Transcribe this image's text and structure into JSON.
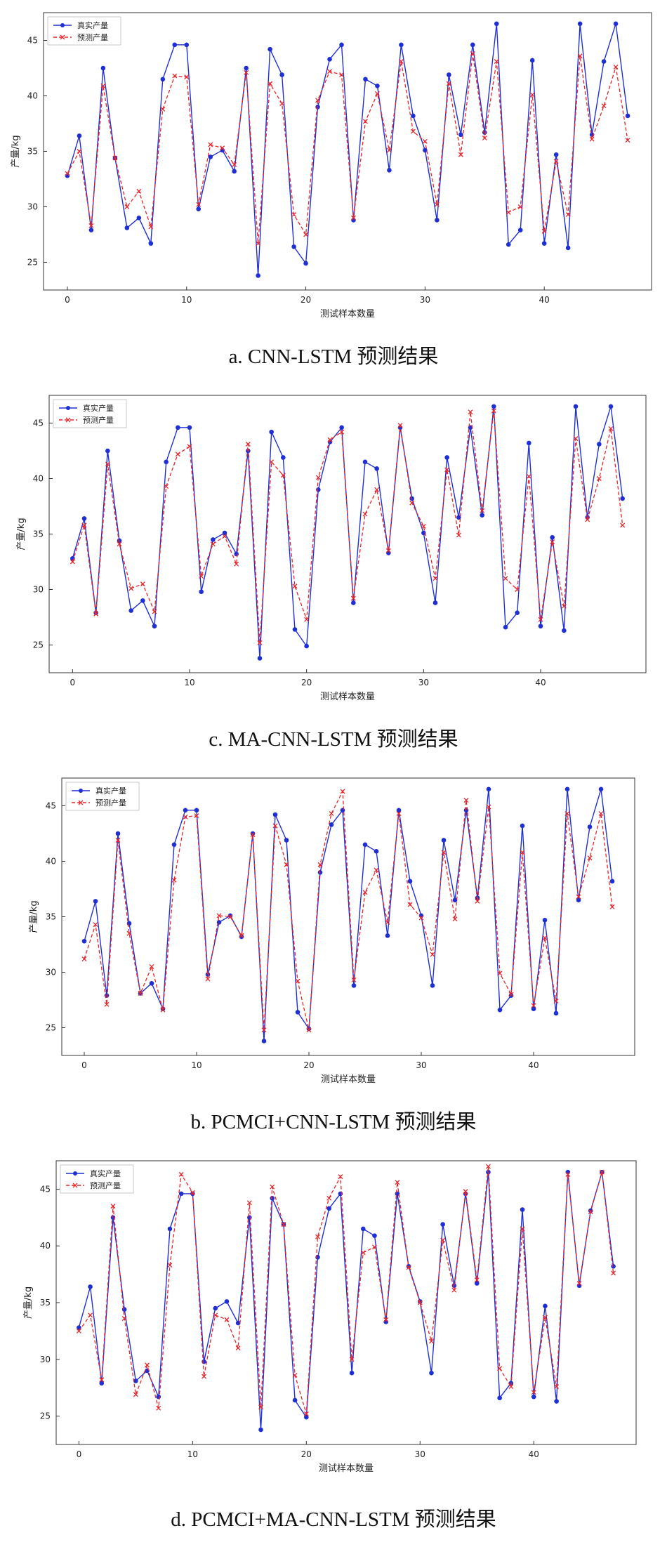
{
  "colors": {
    "true_series": "#1f2fd6",
    "pred_series": "#e8262a",
    "axes": "#333333"
  },
  "chart_data": [
    {
      "type": "line",
      "caption": "a. CNN-LSTM 预测结果",
      "xlabel": "测试样本数量",
      "ylabel": "产量/kg",
      "xlim": [
        -2,
        49
      ],
      "ylim": [
        22.5,
        47.5
      ],
      "xticks": [
        0,
        10,
        20,
        30,
        40
      ],
      "yticks": [
        25,
        30,
        35,
        40,
        45
      ],
      "grid": false,
      "legend_position": "top-left",
      "series": [
        {
          "name": "真实产量",
          "marker": "dot",
          "line": "solid",
          "values": [
            32.8,
            36.4,
            27.9,
            42.5,
            34.4,
            28.1,
            29.0,
            26.7,
            41.5,
            44.6,
            44.6,
            29.8,
            34.5,
            35.1,
            33.2,
            42.5,
            23.8,
            44.2,
            41.9,
            26.4,
            24.9,
            39.0,
            43.3,
            44.6,
            28.8,
            41.5,
            40.9,
            33.3,
            44.6,
            38.2,
            35.1,
            28.8,
            41.9,
            36.5,
            44.6,
            36.7,
            46.5,
            26.6,
            27.9,
            43.2,
            26.7,
            34.7,
            26.3,
            46.5,
            36.5,
            43.1,
            46.5,
            38.2
          ]
        },
        {
          "name": "预测产量",
          "marker": "x",
          "line": "dashed",
          "values": [
            33.0,
            35.0,
            28.3,
            40.9,
            34.4,
            30.0,
            31.4,
            28.2,
            38.8,
            41.8,
            41.7,
            30.2,
            35.6,
            35.3,
            33.8,
            42.1,
            26.7,
            41.1,
            39.3,
            29.3,
            27.5,
            39.6,
            42.2,
            41.9,
            29.0,
            37.7,
            40.2,
            35.1,
            43.1,
            36.8,
            35.9,
            30.2,
            41.1,
            34.7,
            43.8,
            36.2,
            43.1,
            29.5,
            30.0,
            40.1,
            27.8,
            34.1,
            29.3,
            43.6,
            36.1,
            39.1,
            42.6,
            36.0
          ]
        }
      ]
    },
    {
      "type": "line",
      "caption": "c. MA-CNN-LSTM 预测结果",
      "xlabel": "测试样本数量",
      "ylabel": "产量/kg",
      "xlim": [
        -2,
        49
      ],
      "ylim": [
        22.5,
        47.5
      ],
      "xticks": [
        0,
        10,
        20,
        30,
        40
      ],
      "yticks": [
        25,
        30,
        35,
        40,
        45
      ],
      "grid": false,
      "legend_position": "top-left",
      "series": [
        {
          "name": "真实产量",
          "marker": "dot",
          "line": "solid",
          "values": [
            32.8,
            36.4,
            27.9,
            42.5,
            34.4,
            28.1,
            29.0,
            26.7,
            41.5,
            44.6,
            44.6,
            29.8,
            34.5,
            35.1,
            33.2,
            42.5,
            23.8,
            44.2,
            41.9,
            26.4,
            24.9,
            39.0,
            43.3,
            44.6,
            28.8,
            41.5,
            40.9,
            33.3,
            44.6,
            38.2,
            35.1,
            28.8,
            41.9,
            36.5,
            44.6,
            36.7,
            46.5,
            26.6,
            27.9,
            43.2,
            26.7,
            34.7,
            26.3,
            46.5,
            36.5,
            43.1,
            46.5,
            38.2
          ]
        },
        {
          "name": "预测产量",
          "marker": "x",
          "line": "dashed",
          "values": [
            32.5,
            35.8,
            27.8,
            41.3,
            34.1,
            30.1,
            30.5,
            28.0,
            39.3,
            42.2,
            42.9,
            31.2,
            34.1,
            34.8,
            32.3,
            43.1,
            25.2,
            41.5,
            40.3,
            30.3,
            27.3,
            40.1,
            43.5,
            44.2,
            29.2,
            36.8,
            39.0,
            33.5,
            44.8,
            37.8,
            35.7,
            31.0,
            40.8,
            34.9,
            46.0,
            37.1,
            46.1,
            31.0,
            30.0,
            40.2,
            27.3,
            34.3,
            28.5,
            43.6,
            36.3,
            40.0,
            44.5,
            35.8
          ]
        }
      ]
    },
    {
      "type": "line",
      "caption": "b. PCMCI+CNN-LSTM 预测结果",
      "xlabel": "测试样本数量",
      "ylabel": "产量/kg",
      "xlim": [
        -2,
        49
      ],
      "ylim": [
        22.5,
        47.5
      ],
      "xticks": [
        0,
        10,
        20,
        30,
        40
      ],
      "yticks": [
        25,
        30,
        35,
        40,
        45
      ],
      "grid": false,
      "legend_position": "top-left",
      "series": [
        {
          "name": "真实产量",
          "marker": "dot",
          "line": "solid",
          "values": [
            32.8,
            36.4,
            27.9,
            42.5,
            34.4,
            28.1,
            29.0,
            26.7,
            41.5,
            44.6,
            44.6,
            29.8,
            34.5,
            35.1,
            33.2,
            42.5,
            23.8,
            44.2,
            41.9,
            26.4,
            24.9,
            39.0,
            43.3,
            44.6,
            28.8,
            41.5,
            40.9,
            33.3,
            44.6,
            38.2,
            35.1,
            28.8,
            41.9,
            36.5,
            44.6,
            36.7,
            46.5,
            26.6,
            27.9,
            43.2,
            26.7,
            34.7,
            26.3,
            46.5,
            36.5,
            43.1,
            46.5,
            38.2
          ]
        },
        {
          "name": "预测产量",
          "marker": "x",
          "line": "dashed",
          "values": [
            31.2,
            34.3,
            27.1,
            41.9,
            33.5,
            28.1,
            30.5,
            26.6,
            38.3,
            44.0,
            44.1,
            29.4,
            35.1,
            35.0,
            33.3,
            42.4,
            24.8,
            43.2,
            39.7,
            29.2,
            24.8,
            39.7,
            44.3,
            46.3,
            29.3,
            37.2,
            39.2,
            34.5,
            44.3,
            36.1,
            34.9,
            31.6,
            40.8,
            34.8,
            45.5,
            36.4,
            44.9,
            29.9,
            28.0,
            40.8,
            27.0,
            33.1,
            27.4,
            44.3,
            36.8,
            40.3,
            44.3,
            35.9
          ]
        }
      ]
    },
    {
      "type": "line",
      "caption": "d. PCMCI+MA-CNN-LSTM 预测结果",
      "xlabel": "测试样本数量",
      "ylabel": "产量/kg",
      "xlim": [
        -2,
        49
      ],
      "ylim": [
        22.5,
        47.5
      ],
      "xticks": [
        0,
        10,
        20,
        30,
        40
      ],
      "yticks": [
        25,
        30,
        35,
        40,
        45
      ],
      "grid": false,
      "legend_position": "top-left",
      "series": [
        {
          "name": "真实产量",
          "marker": "dot",
          "line": "solid",
          "values": [
            32.8,
            36.4,
            27.9,
            42.5,
            34.4,
            28.1,
            29.0,
            26.7,
            41.5,
            44.6,
            44.6,
            29.8,
            34.5,
            35.1,
            33.2,
            42.5,
            23.8,
            44.2,
            41.9,
            26.4,
            24.9,
            39.0,
            43.3,
            44.6,
            28.8,
            41.5,
            40.9,
            33.3,
            44.6,
            38.2,
            35.1,
            28.8,
            41.9,
            36.5,
            44.6,
            36.7,
            46.5,
            26.6,
            27.9,
            43.2,
            26.7,
            34.7,
            26.3,
            46.5,
            36.5,
            43.1,
            46.5,
            38.2
          ]
        },
        {
          "name": "预测产量",
          "marker": "x",
          "line": "dashed",
          "values": [
            32.5,
            33.9,
            28.2,
            43.5,
            33.6,
            26.9,
            29.5,
            25.7,
            38.3,
            46.3,
            44.7,
            28.5,
            33.9,
            33.5,
            31.0,
            43.8,
            25.8,
            45.2,
            41.9,
            28.6,
            25.2,
            40.8,
            44.2,
            46.1,
            30.0,
            39.4,
            39.9,
            33.5,
            45.6,
            38.1,
            35.0,
            31.6,
            40.5,
            36.1,
            44.8,
            37.0,
            47.0,
            29.2,
            27.6,
            41.5,
            27.1,
            33.7,
            27.6,
            46.3,
            36.7,
            43.0,
            46.5,
            37.6
          ]
        }
      ]
    }
  ]
}
